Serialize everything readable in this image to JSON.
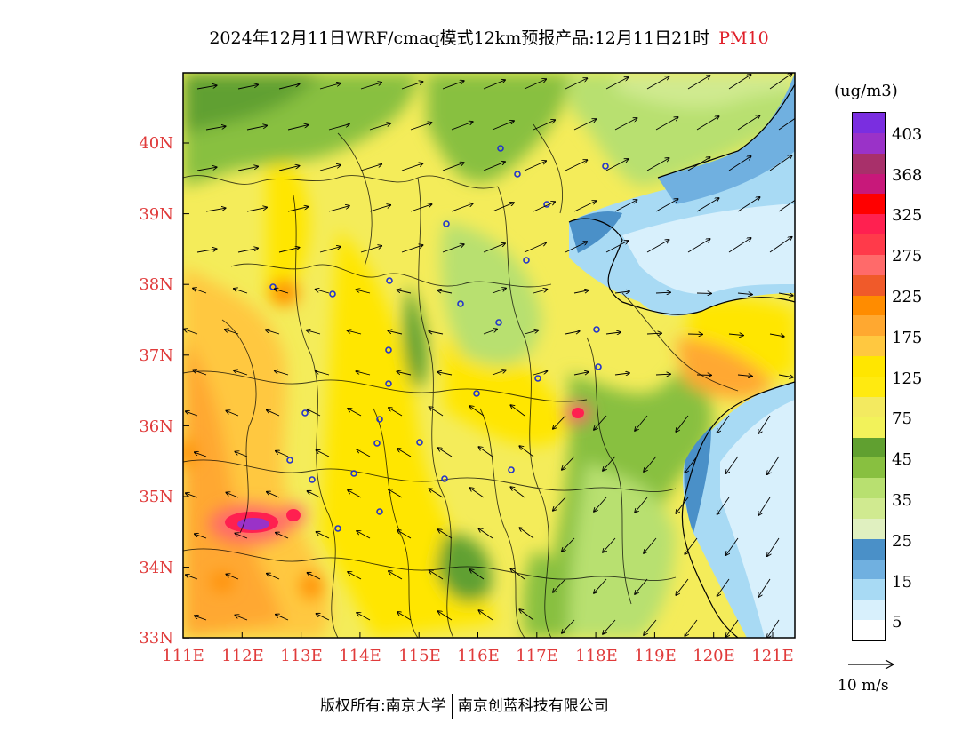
{
  "title": {
    "text": "2024年12月11日WRF/cmaq模式12km预报产品:12月11日21时",
    "product": "PM10"
  },
  "map": {
    "lat_labels": [
      "40N",
      "39N",
      "38N",
      "37N",
      "36N",
      "35N",
      "34N",
      "33N"
    ],
    "lon_labels": [
      "111E",
      "112E",
      "113E",
      "114E",
      "115E",
      "116E",
      "117E",
      "118E",
      "119E",
      "120E",
      "121E"
    ]
  },
  "legend": {
    "unit": "(ug/m3)",
    "labels": [
      "403",
      "368",
      "325",
      "275",
      "225",
      "175",
      "125",
      "75",
      "45",
      "35",
      "25",
      "15",
      "5"
    ],
    "colors": [
      "#7a2ee0",
      "#9a32c8",
      "#a8306a",
      "#c8187a",
      "#ff0000",
      "#ff2050",
      "#ff3a4a",
      "#ff6a6a",
      "#f05a2a",
      "#ff8c00",
      "#ffa830",
      "#ffc840",
      "#ffe600",
      "#ffea10",
      "#f3ea60",
      "#f2f25a",
      "#60a030",
      "#88c040",
      "#b8e070",
      "#d0ea90",
      "#e0f0c0",
      "#4a90c8",
      "#70b0e0",
      "#a8daf4",
      "#d8f0fc",
      "#ffffff"
    ]
  },
  "wind_scale": {
    "label": "10 m/s"
  },
  "copyright": {
    "left": "版权所有:南京大学",
    "right": "南京创蓝科技有限公司"
  }
}
